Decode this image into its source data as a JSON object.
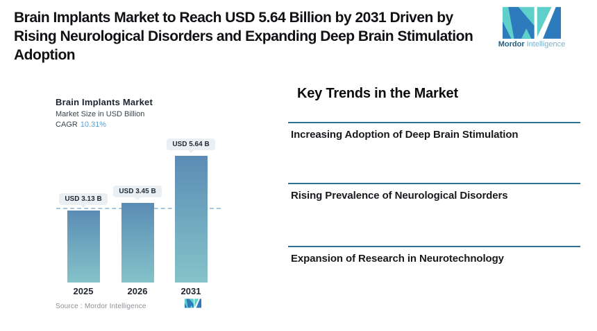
{
  "header": {
    "title_lines": [
      "Brain Implants Market to Reach USD 5.64 Billion by 2031 Driven by",
      "Rising Neurological Disorders and Expanding Deep Brain Stimulation",
      "Adoption"
    ]
  },
  "brand": {
    "name_bold": "Mordor",
    "name_light": "Intelligence",
    "colors": {
      "teal": "#5ECFC9",
      "blue": "#2D7ABD"
    }
  },
  "chart_data": {
    "type": "bar",
    "title": "Brain Implants Market",
    "subtitle": "Market Size in USD Billion",
    "cagr_label": "CAGR",
    "cagr_value": "10.31%",
    "categories": [
      "2025",
      "2026",
      "2031"
    ],
    "values": [
      3.13,
      3.45,
      5.64
    ],
    "bar_labels": [
      "USD 3.13 B",
      "USD 3.45 B",
      "USD 5.64 B"
    ],
    "ylim": [
      0,
      5.64
    ],
    "reference_line_value": 3.13,
    "grid": false,
    "bar_gradient_top": "#5B8CB5",
    "bar_gradient_bottom": "#85C3C9",
    "source_label": "Source :  Mordor Intelligence"
  },
  "trends": {
    "heading": "Key Trends in the Market",
    "divider_color": "#2E7095",
    "items": [
      "Increasing Adoption of Deep Brain Stimulation",
      "Rising Prevalence of Neurological Disorders",
      "Expansion of Research in Neurotechnology"
    ]
  }
}
